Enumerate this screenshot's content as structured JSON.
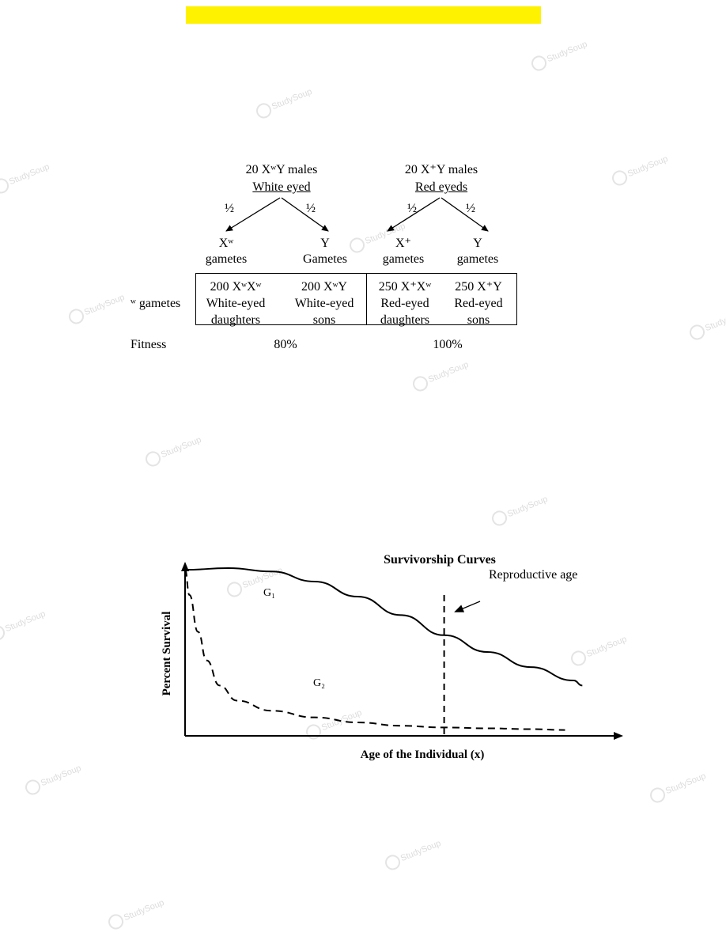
{
  "colors": {
    "highlight": "#fff200",
    "watermark": "#dcdcdc"
  },
  "watermark": {
    "text": "StudySoup",
    "icon": "studysoup-logo-icon"
  },
  "cross": {
    "left_parent": {
      "line1": "20 XʷY males",
      "line2": "White eyed"
    },
    "right_parent": {
      "line1": "20 X⁺Y males",
      "line2": "Red eyeds"
    },
    "half": "½",
    "gametes": [
      {
        "symbol": "Xʷ",
        "label": "gametes"
      },
      {
        "symbol": "Y",
        "label": "Gametes"
      },
      {
        "symbol": "X⁺",
        "label": "gametes"
      },
      {
        "symbol": "Y",
        "label": "gametes"
      }
    ],
    "row_label": "ʷ gametes",
    "offspring": [
      {
        "genotype": "200 XʷXʷ",
        "line2": "White-eyed",
        "line3": "daughters"
      },
      {
        "genotype": "200 XʷY",
        "line2": "White-eyed",
        "line3": "sons"
      },
      {
        "genotype": "250 X⁺Xʷ",
        "line2": "Red-eyed",
        "line3": "daughters"
      },
      {
        "genotype": "250 X⁺Y",
        "line2": "Red-eyed",
        "line3": "sons"
      }
    ],
    "fitness_label": "Fitness",
    "fitness_values": [
      "80%",
      "100%"
    ]
  },
  "chart_data": {
    "type": "line",
    "title": "Survivorship Curves",
    "xlabel": "Age of the Individual (x)",
    "ylabel": "Percent Survival",
    "annotation": "Reproductive age",
    "grid": false,
    "series": [
      {
        "name": "G₁",
        "style": "solid",
        "x": [
          0,
          0.1,
          0.2,
          0.3,
          0.4,
          0.5,
          0.6,
          0.7,
          0.8,
          0.9,
          0.92
        ],
        "y": [
          0.99,
          1.0,
          0.98,
          0.92,
          0.83,
          0.72,
          0.6,
          0.5,
          0.41,
          0.33,
          0.3
        ]
      },
      {
        "name": "G₂",
        "style": "dashed",
        "x": [
          0,
          0.01,
          0.03,
          0.05,
          0.08,
          0.12,
          0.2,
          0.3,
          0.4,
          0.5,
          0.6,
          0.7,
          0.8,
          0.88
        ],
        "y": [
          0.99,
          0.84,
          0.62,
          0.45,
          0.3,
          0.21,
          0.15,
          0.11,
          0.08,
          0.06,
          0.05,
          0.045,
          0.04,
          0.035
        ]
      }
    ],
    "reproductive_age_x": 0.6
  }
}
